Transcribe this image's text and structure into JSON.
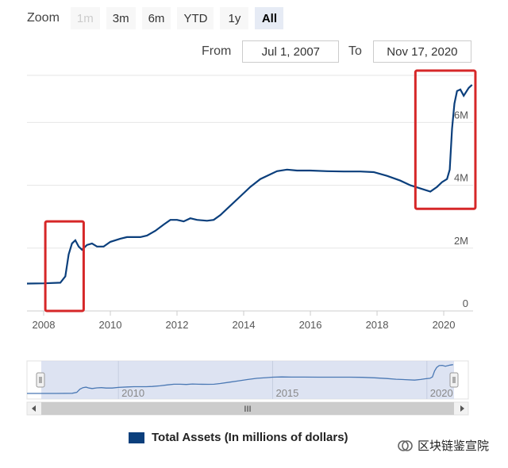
{
  "toolbar": {
    "zoom_label": "Zoom",
    "buttons": [
      {
        "label": "1m",
        "state": "disabled"
      },
      {
        "label": "3m",
        "state": "normal"
      },
      {
        "label": "6m",
        "state": "normal"
      },
      {
        "label": "YTD",
        "state": "normal"
      },
      {
        "label": "1y",
        "state": "normal"
      },
      {
        "label": "All",
        "state": "active"
      }
    ],
    "from_label": "From",
    "from_value": "Jul 1, 2007",
    "to_label": "To",
    "to_value": "Nov 17, 2020"
  },
  "chart_data": {
    "type": "line",
    "title": "",
    "xlabel": "",
    "ylabel": "",
    "line_color": "#0b3f7c",
    "highlight_color": "#d62728",
    "x_ticks": [
      "2008",
      "2010",
      "2012",
      "2014",
      "2016",
      "2018",
      "2020"
    ],
    "y_ticks": [
      "0",
      "2M",
      "4M",
      "6M"
    ],
    "xlim": [
      2007.5,
      2020.88
    ],
    "ylim": [
      0,
      7500000
    ],
    "series": [
      {
        "name": "Total Assets (In millions of dollars)",
        "points": [
          [
            2007.5,
            870000
          ],
          [
            2008.0,
            880000
          ],
          [
            2008.5,
            900000
          ],
          [
            2008.65,
            1100000
          ],
          [
            2008.75,
            1800000
          ],
          [
            2008.85,
            2150000
          ],
          [
            2008.95,
            2250000
          ],
          [
            2009.05,
            2050000
          ],
          [
            2009.15,
            1950000
          ],
          [
            2009.3,
            2100000
          ],
          [
            2009.45,
            2150000
          ],
          [
            2009.6,
            2050000
          ],
          [
            2009.8,
            2050000
          ],
          [
            2010.0,
            2200000
          ],
          [
            2010.3,
            2300000
          ],
          [
            2010.5,
            2350000
          ],
          [
            2010.9,
            2350000
          ],
          [
            2011.1,
            2400000
          ],
          [
            2011.35,
            2550000
          ],
          [
            2011.6,
            2750000
          ],
          [
            2011.8,
            2900000
          ],
          [
            2012.0,
            2900000
          ],
          [
            2012.2,
            2850000
          ],
          [
            2012.4,
            2950000
          ],
          [
            2012.6,
            2900000
          ],
          [
            2012.9,
            2870000
          ],
          [
            2013.1,
            2900000
          ],
          [
            2013.3,
            3050000
          ],
          [
            2013.6,
            3350000
          ],
          [
            2013.9,
            3650000
          ],
          [
            2014.2,
            3950000
          ],
          [
            2014.5,
            4200000
          ],
          [
            2014.8,
            4350000
          ],
          [
            2015.0,
            4450000
          ],
          [
            2015.3,
            4500000
          ],
          [
            2015.6,
            4470000
          ],
          [
            2016.0,
            4470000
          ],
          [
            2016.5,
            4450000
          ],
          [
            2017.0,
            4440000
          ],
          [
            2017.5,
            4440000
          ],
          [
            2017.9,
            4420000
          ],
          [
            2018.3,
            4300000
          ],
          [
            2018.7,
            4150000
          ],
          [
            2019.0,
            4000000
          ],
          [
            2019.3,
            3900000
          ],
          [
            2019.6,
            3800000
          ],
          [
            2019.8,
            3950000
          ],
          [
            2019.95,
            4100000
          ],
          [
            2020.1,
            4200000
          ],
          [
            2020.18,
            4500000
          ],
          [
            2020.25,
            5800000
          ],
          [
            2020.32,
            6600000
          ],
          [
            2020.4,
            7000000
          ],
          [
            2020.5,
            7050000
          ],
          [
            2020.6,
            6850000
          ],
          [
            2020.75,
            7100000
          ],
          [
            2020.85,
            7200000
          ]
        ]
      }
    ],
    "highlights": [
      {
        "x_range": [
          2008.05,
          2009.2
        ],
        "y_range": [
          0,
          2850000
        ]
      },
      {
        "x_range": [
          2019.15,
          2020.95
        ],
        "y_range": [
          3250000,
          7650000
        ]
      }
    ],
    "navigator": {
      "ticks": [
        "2010",
        "2015",
        "2020"
      ],
      "handle_glyph": "III"
    },
    "legend": {
      "position": "bottom",
      "label": "Total Assets (In millions of dollars)"
    },
    "grid": true
  },
  "watermark": {
    "text": "区块链鉴宣院",
    "icon": "wechat-official-icon"
  }
}
